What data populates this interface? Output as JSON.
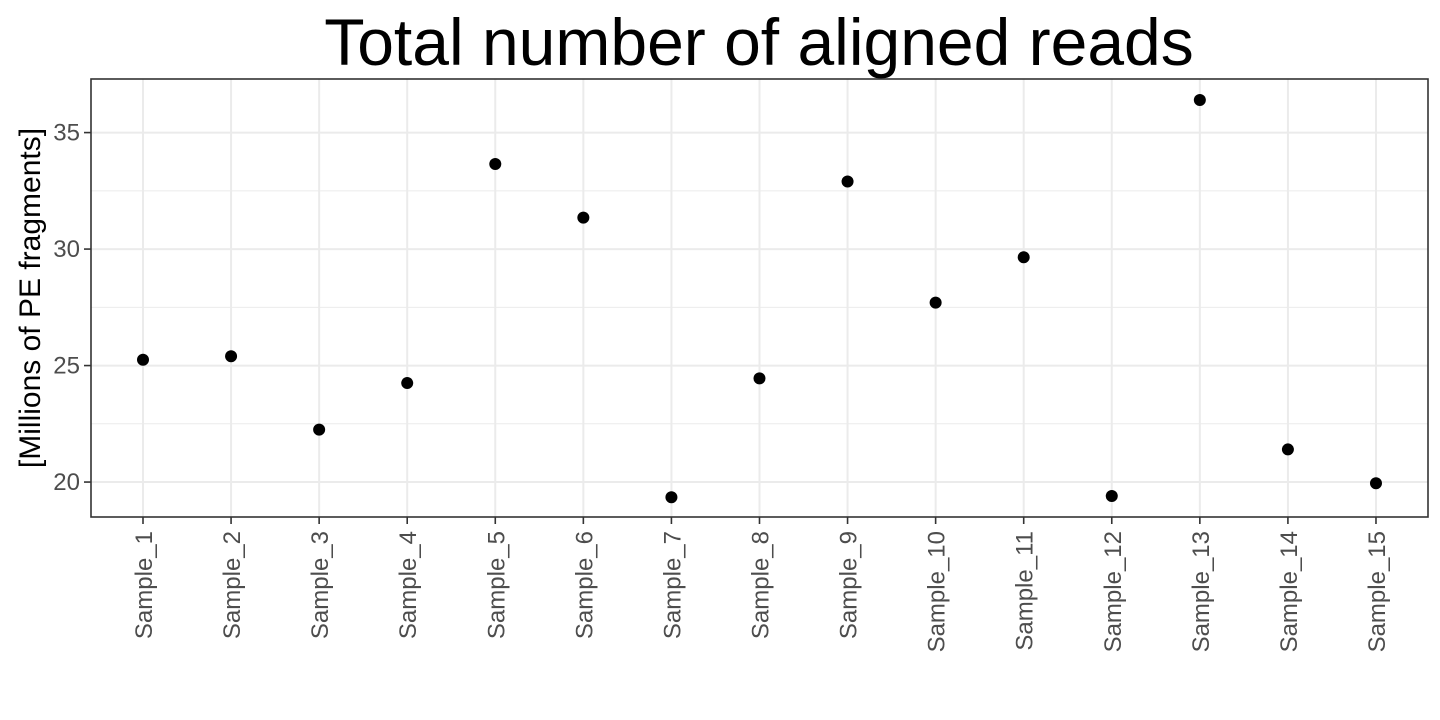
{
  "chart_data": {
    "type": "scatter",
    "title": "Total number of aligned reads",
    "xlabel": "",
    "ylabel": "[Millions of PE fragments]",
    "categories": [
      "Sample_1",
      "Sample_2",
      "Sample_3",
      "Sample_4",
      "Sample_5",
      "Sample_6",
      "Sample_7",
      "Sample_8",
      "Sample_9",
      "Sample_10",
      "Sample_11",
      "Sample_12",
      "Sample_13",
      "Sample_14",
      "Sample_15"
    ],
    "values": [
      25.25,
      25.4,
      22.25,
      24.25,
      33.65,
      31.35,
      19.35,
      24.45,
      32.9,
      27.7,
      29.65,
      19.4,
      36.4,
      21.4,
      19.95
    ],
    "ylim": [
      18.5,
      37.3
    ],
    "yticks": [
      20,
      25,
      30,
      35
    ],
    "grid": true,
    "legend": "none",
    "point_color": "#000000",
    "grid_color": "#ebebeb",
    "panel_border_color": "#333333"
  }
}
